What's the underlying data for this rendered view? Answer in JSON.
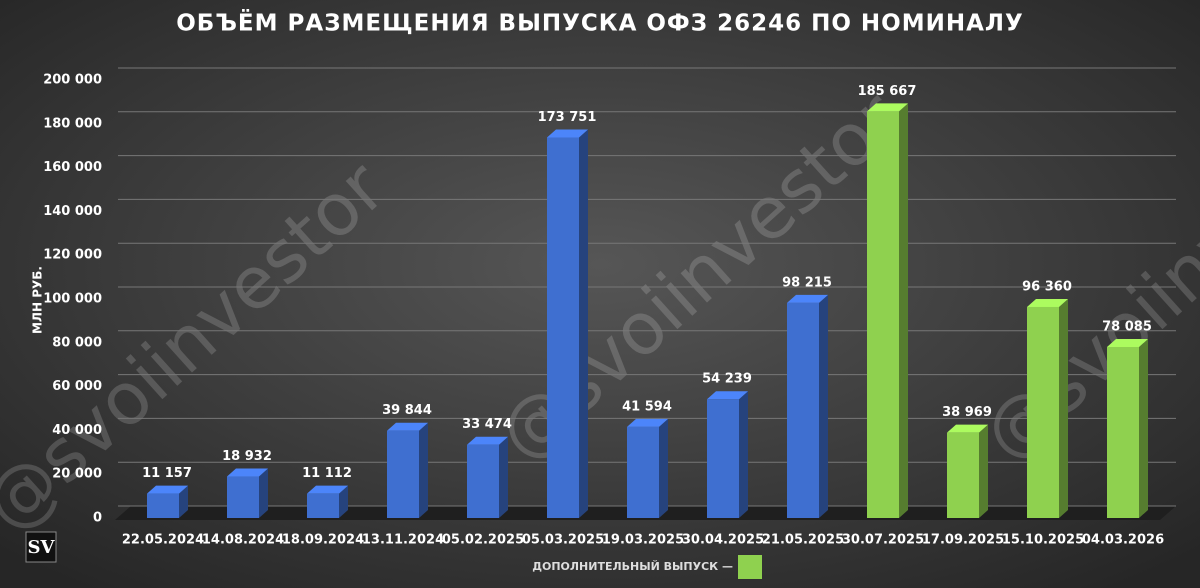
{
  "chart_data": {
    "type": "bar",
    "title": "ОБЪЁМ РАЗМЕЩЕНИЯ ВЫПУСКА ОФЗ 26246 ПО НОМИНАЛУ",
    "y_label": "МЛН РУБ.",
    "watermark": "@svoiinvestor",
    "logo": "SV",
    "categories": [
      "22.05.2024",
      "14.08.2024",
      "18.09.2024",
      "13.11.2024",
      "05.02.2025",
      "05.03.2025",
      "19.03.2025",
      "30.04.2025",
      "21.05.2025",
      "30.07.2025",
      "17.09.2025",
      "15.10.2025",
      "04.03.2026"
    ],
    "series": [
      {
        "color": "#3f6fd0",
        "values": [
          11157,
          18932,
          11112,
          39844,
          33474,
          173751,
          41594,
          54239,
          98215,
          null,
          null,
          null,
          null
        ],
        "value_labels": [
          "11 157",
          "18 932",
          "11 112",
          "39 844",
          "33 474",
          "173 751",
          "41 594",
          "54 239",
          "98 215",
          null,
          null,
          null,
          null
        ]
      },
      {
        "name": "ДОПОЛНИТЕЛЬНЫЙ ВЫПУСК —",
        "color": "#8fd14f",
        "values": [
          null,
          null,
          null,
          null,
          null,
          null,
          null,
          null,
          null,
          185667,
          38969,
          96360,
          78085
        ],
        "value_labels": [
          null,
          null,
          null,
          null,
          null,
          null,
          null,
          null,
          null,
          "185 667",
          "38 969",
          "96 360",
          "78 085"
        ]
      }
    ],
    "ylim": [
      0,
      200000
    ],
    "yticks": [
      0,
      {
        "value": 20000,
        "label": "20 000"
      },
      {
        "value": 40000,
        "label": "40 000"
      },
      {
        "value": 60000,
        "label": "60 000"
      },
      {
        "value": 80000,
        "label": "80 000"
      },
      {
        "value": 100000,
        "label": "100 000"
      },
      {
        "value": 120000,
        "label": "120 000"
      },
      {
        "value": 140000,
        "label": "140 000"
      },
      {
        "value": 160000,
        "label": "160 000"
      },
      {
        "value": 180000,
        "label": "180 000"
      },
      {
        "value": 200000,
        "label": "200 000"
      }
    ],
    "grid": true
  }
}
